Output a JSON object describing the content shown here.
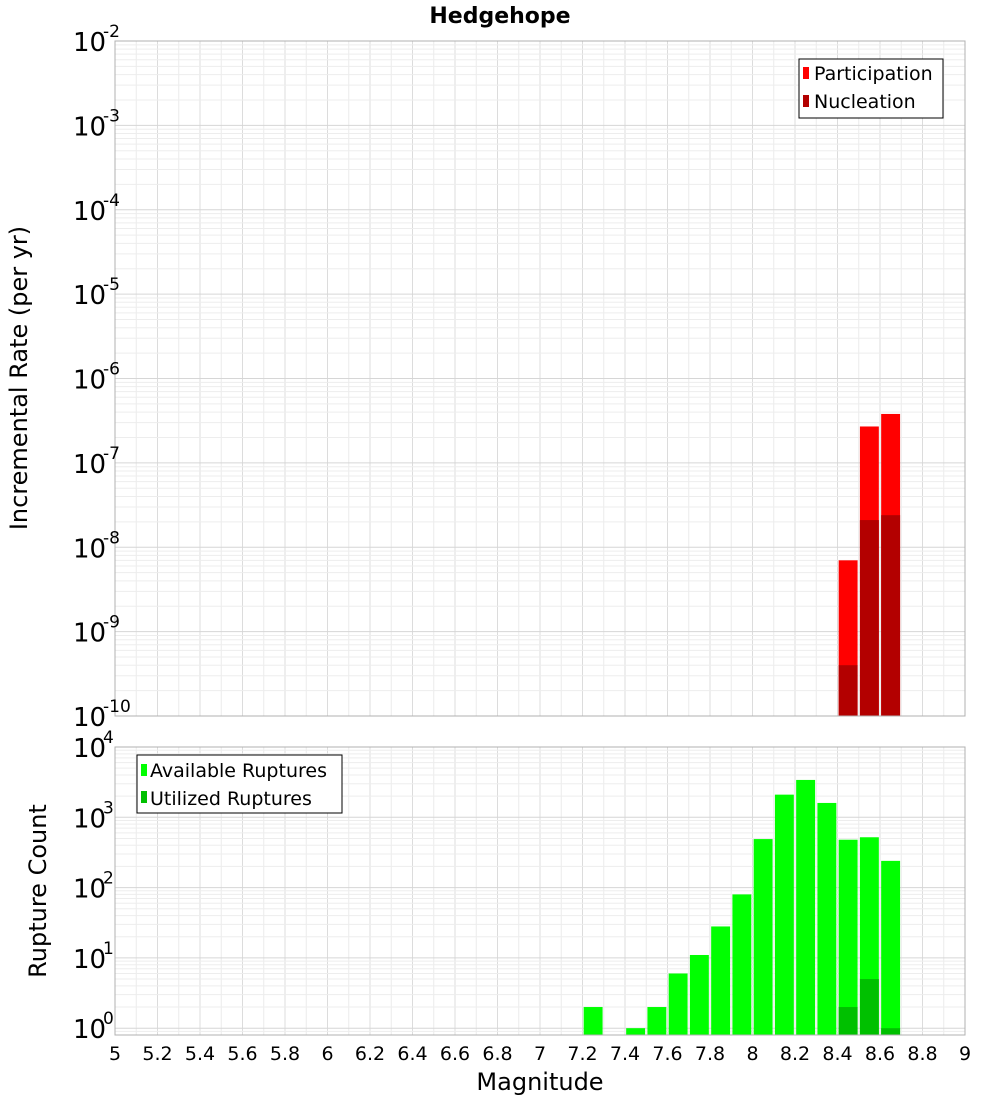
{
  "chart_data": [
    {
      "type": "bar",
      "title": "Hedgehope",
      "ylabel": "Incremental Rate (per yr)",
      "xlabel": "",
      "yscale": "log",
      "ylim": [
        1e-10,
        0.01
      ],
      "xlim": [
        5,
        9
      ],
      "ytick_exponents": [
        "-2",
        "-3",
        "-4",
        "-5",
        "-6",
        "-7",
        "-8",
        "-9",
        "-10"
      ],
      "ytick_values": [
        0.01,
        0.001,
        0.0001,
        1e-05,
        1e-06,
        1e-07,
        1e-08,
        1e-09,
        1e-10
      ],
      "grid": true,
      "legend_position": "top-right",
      "x": [
        8.45,
        8.55,
        8.65
      ],
      "series": [
        {
          "name": "Participation",
          "color": "#ff0000",
          "values": [
            7e-09,
            2.7e-07,
            3.8e-07
          ]
        },
        {
          "name": "Nucleation",
          "color": "#b30000",
          "values": [
            4e-10,
            2.1e-08,
            2.4e-08
          ]
        }
      ]
    },
    {
      "type": "bar",
      "ylabel": "Rupture Count",
      "xlabel": "Magnitude",
      "yscale": "log",
      "ylim": [
        0.8,
        10000
      ],
      "xlim": [
        5,
        9
      ],
      "ytick_exponents": [
        "4",
        "3",
        "2",
        "1",
        "0"
      ],
      "ytick_values": [
        10000,
        1000,
        100,
        10,
        1
      ],
      "xticks": [
        "5",
        "5.2",
        "5.4",
        "5.6",
        "5.8",
        "6",
        "6.2",
        "6.4",
        "6.6",
        "6.8",
        "7",
        "7.2",
        "7.4",
        "7.6",
        "7.8",
        "8",
        "8.2",
        "8.4",
        "8.6",
        "8.8",
        "9"
      ],
      "xtick_values": [
        5,
        5.2,
        5.4,
        5.6,
        5.8,
        6,
        6.2,
        6.4,
        6.6,
        6.8,
        7,
        7.2,
        7.4,
        7.6,
        7.8,
        8,
        8.2,
        8.4,
        8.6,
        8.8,
        9
      ],
      "grid": true,
      "legend_position": "top-left",
      "x": [
        7.25,
        7.35,
        7.45,
        7.55,
        7.65,
        7.75,
        7.85,
        7.95,
        8.05,
        8.15,
        8.25,
        8.35,
        8.45,
        8.55,
        8.65
      ],
      "series": [
        {
          "name": "Available Ruptures",
          "color": "#00ff00",
          "values": [
            2,
            0,
            1,
            2,
            6,
            11,
            28,
            80,
            490,
            2100,
            3400,
            1600,
            480,
            520,
            240
          ]
        },
        {
          "name": "Utilized Ruptures",
          "color": "#00c000",
          "values": [
            0,
            0,
            0,
            0,
            0,
            0,
            0,
            0,
            0,
            0,
            0,
            0,
            2,
            5,
            1
          ]
        }
      ]
    }
  ]
}
